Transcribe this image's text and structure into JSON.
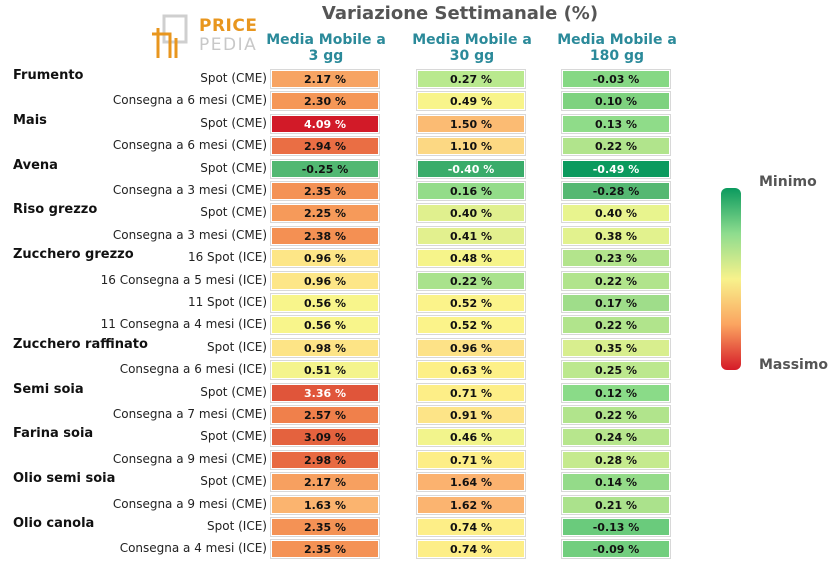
{
  "title": "Variazione Settimanale (%)",
  "logo": {
    "line1": "PRICE",
    "line2": "PEDIA"
  },
  "legend": {
    "min_label": "Minimo",
    "max_label": "Massimo"
  },
  "chart_data": {
    "type": "heatmap",
    "title": "Variazione Settimanale (%)",
    "columns": [
      "Media Mobile a 3 gg",
      "Media Mobile a 30 gg",
      "Media Mobile a 180 gg"
    ],
    "column_lines": [
      [
        "Media Mobile a",
        "3 gg"
      ],
      [
        "Media Mobile a",
        "30 gg"
      ],
      [
        "Media Mobile a",
        "180 gg"
      ]
    ],
    "rows": [
      {
        "group": "Frumento",
        "label": "Spot (CME)",
        "values": [
          2.17,
          0.27,
          -0.03
        ],
        "texts": [
          "2.17 %",
          "0.27 %",
          "-0.03 %"
        ],
        "colors": [
          "#f7a463",
          "#b9e98e",
          "#86d884"
        ]
      },
      {
        "group": "",
        "label": "Consegna a 6 mesi (CME)",
        "values": [
          2.3,
          0.49,
          0.1
        ],
        "texts": [
          "2.30 %",
          "0.49 %",
          "0.10 %"
        ],
        "colors": [
          "#f59757",
          "#f8f48a",
          "#7ed27f"
        ]
      },
      {
        "group": "Mais",
        "label": "Spot (CME)",
        "values": [
          4.09,
          1.5,
          0.13
        ],
        "texts": [
          "4.09 %",
          "1.50 %",
          "0.13 %"
        ],
        "colors": [
          "#d21a28",
          "#fbbb73",
          "#8fdc89"
        ]
      },
      {
        "group": "",
        "label": "Consegna a 6 mesi (CME)",
        "values": [
          2.94,
          1.1,
          0.22
        ],
        "texts": [
          "2.94 %",
          "1.10 %",
          "0.22 %"
        ],
        "colors": [
          "#ea6e44",
          "#fcd883",
          "#b1e48c"
        ]
      },
      {
        "group": "Avena",
        "label": "Spot (CME)",
        "values": [
          -0.25,
          -0.4,
          -0.49
        ],
        "texts": [
          "-0.25 %",
          "-0.40 %",
          "-0.49 %"
        ],
        "colors": [
          "#52b872",
          "#3aac6a",
          "#0b9a5e"
        ]
      },
      {
        "group": "",
        "label": "Consegna a 3 mesi (CME)",
        "values": [
          2.35,
          0.16,
          -0.28
        ],
        "texts": [
          "2.35 %",
          "0.16 %",
          "-0.28 %"
        ],
        "colors": [
          "#f49255",
          "#93dc89",
          "#55b872"
        ]
      },
      {
        "group": "Riso grezzo",
        "label": "Spot (CME)",
        "values": [
          2.25,
          0.4,
          0.4
        ],
        "texts": [
          "2.25 %",
          "0.40 %",
          "0.40 %"
        ],
        "colors": [
          "#f69a5a",
          "#e0f08e",
          "#e8f48e"
        ]
      },
      {
        "group": "",
        "label": "Consegna a 3 mesi (CME)",
        "values": [
          2.38,
          0.41,
          0.38
        ],
        "texts": [
          "2.38 %",
          "0.41 %",
          "0.38 %"
        ],
        "colors": [
          "#f49053",
          "#e2f08e",
          "#e2f28e"
        ]
      },
      {
        "group": "Zucchero grezzo",
        "label": "16 Spot (ICE)",
        "values": [
          0.96,
          0.48,
          0.23
        ],
        "texts": [
          "0.96 %",
          "0.48 %",
          "0.23 %"
        ],
        "colors": [
          "#fde687",
          "#f6f48a",
          "#b3e48c"
        ]
      },
      {
        "group": "",
        "label": "16 Consegna a 5 mesi (ICE)",
        "values": [
          0.96,
          0.22,
          0.22
        ],
        "texts": [
          "0.96 %",
          "0.22 %",
          "0.22 %"
        ],
        "colors": [
          "#fde687",
          "#a9e28c",
          "#b1e48c"
        ]
      },
      {
        "group": "",
        "label": "11 Spot (ICE)",
        "values": [
          0.56,
          0.52,
          0.17
        ],
        "texts": [
          "0.56 %",
          "0.52 %",
          "0.17 %"
        ],
        "colors": [
          "#f8f58b",
          "#fbf38a",
          "#9fdd8a"
        ]
      },
      {
        "group": "",
        "label": "11 Consegna a 4 mesi (ICE)",
        "values": [
          0.56,
          0.52,
          0.22
        ],
        "texts": [
          "0.56 %",
          "0.52 %",
          "0.22 %"
        ],
        "colors": [
          "#f8f58b",
          "#fbf38a",
          "#b1e48c"
        ]
      },
      {
        "group": "Zucchero raffinato",
        "label": "Spot (ICE)",
        "values": [
          0.98,
          0.96,
          0.35
        ],
        "texts": [
          "0.98 %",
          "0.96 %",
          "0.35 %"
        ],
        "colors": [
          "#fde486",
          "#fde287",
          "#d8ee8e"
        ]
      },
      {
        "group": "",
        "label": "Consegna a 6 mesi (ICE)",
        "values": [
          0.51,
          0.63,
          0.25
        ],
        "texts": [
          "0.51 %",
          "0.63 %",
          "0.25 %"
        ],
        "colors": [
          "#f4f48c",
          "#fdf087",
          "#bce88e"
        ]
      },
      {
        "group": "Semi soia",
        "label": "Spot (CME)",
        "values": [
          3.36,
          0.71,
          0.12
        ],
        "texts": [
          "3.36 %",
          "0.71 %",
          "0.12 %"
        ],
        "colors": [
          "#e0553a",
          "#fdee87",
          "#8adb88"
        ]
      },
      {
        "group": "",
        "label": "Consegna a 7 mesi (CME)",
        "values": [
          2.57,
          0.91,
          0.22
        ],
        "texts": [
          "2.57 %",
          "0.91 %",
          "0.22 %"
        ],
        "colors": [
          "#f0804b",
          "#fde487",
          "#b1e48c"
        ]
      },
      {
        "group": "Farina soia",
        "label": "Spot (CME)",
        "values": [
          3.09,
          0.46,
          0.24
        ],
        "texts": [
          "3.09 %",
          "0.46 %",
          "0.24 %"
        ],
        "colors": [
          "#e4623e",
          "#f2f48c",
          "#b7e68d"
        ]
      },
      {
        "group": "",
        "label": "Consegna a 9 mesi (CME)",
        "values": [
          2.98,
          0.71,
          0.28
        ],
        "texts": [
          "2.98 %",
          "0.71 %",
          "0.28 %"
        ],
        "colors": [
          "#e86a42",
          "#fdee87",
          "#c5ea8e"
        ]
      },
      {
        "group": "Olio semi soia",
        "label": "Spot (CME)",
        "values": [
          2.17,
          1.64,
          0.14
        ],
        "texts": [
          "2.17 %",
          "1.64 %",
          "0.14 %"
        ],
        "colors": [
          "#f7a060",
          "#fbb26f",
          "#94db89"
        ]
      },
      {
        "group": "",
        "label": "Consegna a 9 mesi (CME)",
        "values": [
          1.63,
          1.62,
          0.21
        ],
        "texts": [
          "1.63 %",
          "1.62 %",
          "0.21 %"
        ],
        "colors": [
          "#fbb46f",
          "#fbb470",
          "#abe28c"
        ]
      },
      {
        "group": "Olio canola",
        "label": "Spot (ICE)",
        "values": [
          2.35,
          0.74,
          -0.13
        ],
        "texts": [
          "2.35 %",
          "0.74 %",
          "-0.13 %"
        ],
        "colors": [
          "#f49255",
          "#fdee87",
          "#6acb7c"
        ]
      },
      {
        "group": "",
        "label": "Consegna a 4 mesi (ICE)",
        "values": [
          2.35,
          0.74,
          -0.09
        ],
        "texts": [
          "2.35 %",
          "0.74 %",
          "-0.09 %"
        ],
        "colors": [
          "#f49255",
          "#fdee87",
          "#72ce7e"
        ]
      }
    ],
    "highlight_text_color": "#ffffff",
    "highlight_cells": [
      [
        2,
        0
      ],
      [
        4,
        1
      ],
      [
        4,
        2
      ],
      [
        14,
        0
      ]
    ]
  }
}
